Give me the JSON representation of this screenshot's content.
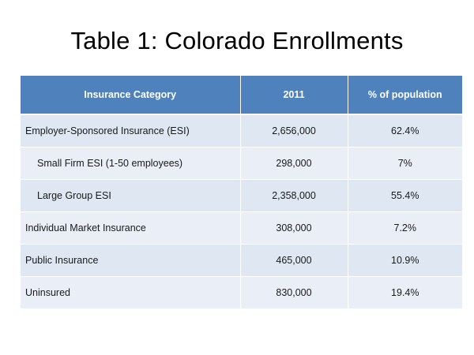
{
  "slide": {
    "title": "Table 1: Colorado Enrollments"
  },
  "table": {
    "headers": [
      "Insurance Category",
      "2011",
      "% of population"
    ],
    "rows": [
      {
        "category": "Employer-Sponsored Insurance (ESI)",
        "count": "2,656,000",
        "percent": "62.4%"
      },
      {
        "category": "Small Firm ESI (1-50 employees)",
        "count": "298,000",
        "percent": "7%"
      },
      {
        "category": "Large Group ESI",
        "count": "2,358,000",
        "percent": "55.4%"
      },
      {
        "category": "Individual Market Insurance",
        "count": "308,000",
        "percent": "7.2%"
      },
      {
        "category": "Public Insurance",
        "count": "465,000",
        "percent": "10.9%"
      },
      {
        "category": "Uninsured",
        "count": "830,000",
        "percent": "19.4%"
      }
    ]
  },
  "colors": {
    "header_bg": "#4f81bd",
    "row_bg": "#dfe7f2"
  }
}
